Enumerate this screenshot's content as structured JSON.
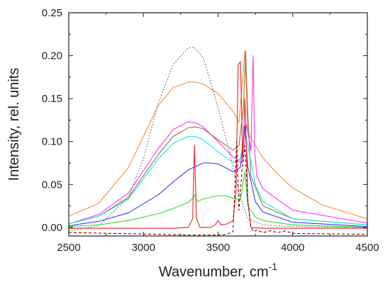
{
  "chart_data": {
    "type": "line",
    "xlabel": "Wavenumber, cm",
    "xlabel_superscript": "-1",
    "ylabel": "Intensity, rel. units",
    "xlim": [
      2500,
      4500
    ],
    "ylim": [
      -0.01,
      0.25
    ],
    "x_ticks": [
      "2500",
      "3000",
      "3500",
      "4000",
      "4500"
    ],
    "y_ticks": [
      "0.00",
      "0.05",
      "0.10",
      "0.15",
      "0.20",
      "0.25"
    ],
    "grid": false,
    "legend": "none",
    "series": [
      {
        "color": "#ff8c3a",
        "dash": "solid",
        "x": [
          2500,
          2700,
          2900,
          3000,
          3100,
          3200,
          3300,
          3350,
          3400,
          3500,
          3600,
          3640,
          3680,
          3700,
          3800,
          3900,
          4000,
          4200,
          4500
        ],
        "y": [
          0.013,
          0.028,
          0.07,
          0.106,
          0.142,
          0.163,
          0.169,
          0.169,
          0.167,
          0.156,
          0.135,
          0.122,
          0.206,
          0.11,
          0.081,
          0.062,
          0.046,
          0.026,
          0.01
        ]
      },
      {
        "color": "#555555",
        "dash": "dot",
        "x": [
          2500,
          2700,
          2900,
          3000,
          3100,
          3200,
          3300,
          3340,
          3400,
          3500,
          3600,
          3650,
          3700,
          3800,
          3900,
          4000,
          4500
        ],
        "y": [
          -0.004,
          0.002,
          0.035,
          0.08,
          0.145,
          0.19,
          0.209,
          0.21,
          0.198,
          0.14,
          0.07,
          0.035,
          0.01,
          0.003,
          0.002,
          0.001,
          0.0
        ]
      },
      {
        "color": "#ff33ff",
        "dash": "solid",
        "x": [
          2500,
          2700,
          2900,
          3100,
          3200,
          3300,
          3350,
          3400,
          3500,
          3600,
          3660,
          3690,
          3720,
          3735,
          3745,
          3760,
          3800,
          4000,
          4500
        ],
        "y": [
          0.004,
          0.015,
          0.04,
          0.092,
          0.114,
          0.123,
          0.122,
          0.117,
          0.1,
          0.082,
          0.075,
          0.12,
          0.09,
          0.2,
          0.09,
          0.06,
          0.045,
          0.02,
          0.005
        ]
      },
      {
        "color": "#8c7a3a",
        "dash": "solid",
        "x": [
          2500,
          2700,
          2900,
          3100,
          3200,
          3300,
          3350,
          3400,
          3500,
          3600,
          3640,
          3670,
          3685,
          3700,
          3720,
          3800,
          4000,
          4500
        ],
        "y": [
          0.004,
          0.013,
          0.035,
          0.085,
          0.106,
          0.116,
          0.117,
          0.115,
          0.102,
          0.09,
          0.095,
          0.14,
          0.205,
          0.13,
          0.06,
          0.025,
          0.01,
          0.003
        ]
      },
      {
        "color": "#22e5e5",
        "dash": "solid",
        "x": [
          2500,
          2700,
          2900,
          3100,
          3200,
          3300,
          3350,
          3400,
          3500,
          3600,
          3650,
          3680,
          3700,
          3750,
          3800,
          4000,
          4500
        ],
        "y": [
          0.004,
          0.013,
          0.033,
          0.08,
          0.098,
          0.106,
          0.106,
          0.102,
          0.088,
          0.076,
          0.08,
          0.115,
          0.095,
          0.05,
          0.03,
          0.01,
          0.003
        ]
      },
      {
        "color": "#3a3aff",
        "dash": "solid",
        "x": [
          2500,
          2700,
          2900,
          3100,
          3200,
          3300,
          3400,
          3450,
          3500,
          3600,
          3650,
          3680,
          3700,
          3750,
          3800,
          4000,
          4500
        ],
        "y": [
          0.002,
          0.007,
          0.017,
          0.038,
          0.053,
          0.067,
          0.075,
          0.075,
          0.074,
          0.065,
          0.07,
          0.118,
          0.07,
          0.03,
          0.018,
          0.006,
          0.001
        ]
      },
      {
        "color": "#33dd33",
        "dash": "solid",
        "x": [
          2500,
          2700,
          2900,
          3100,
          3200,
          3300,
          3330,
          3345,
          3360,
          3400,
          3500,
          3550,
          3600,
          3650,
          3680,
          3700,
          3750,
          3800,
          4000,
          4500
        ],
        "y": [
          0.001,
          0.003,
          0.008,
          0.016,
          0.022,
          0.029,
          0.034,
          0.038,
          0.03,
          0.033,
          0.037,
          0.037,
          0.034,
          0.033,
          0.065,
          0.025,
          0.012,
          0.008,
          0.003,
          0.0
        ]
      },
      {
        "color": "#ee2222",
        "dash": "solid",
        "x": [
          2500,
          3000,
          3200,
          3300,
          3330,
          3342,
          3355,
          3380,
          3450,
          3480,
          3500,
          3520,
          3560,
          3600,
          3620,
          3635,
          3650,
          3665,
          3680,
          3700,
          3720,
          3800,
          4000,
          4500
        ],
        "y": [
          -0.001,
          -0.001,
          -0.001,
          0.0,
          0.01,
          0.096,
          0.01,
          0.0,
          0.0,
          0.003,
          0.008,
          0.003,
          0.004,
          0.008,
          0.04,
          0.19,
          0.193,
          0.08,
          0.15,
          0.03,
          0.0,
          -0.001,
          -0.001,
          -0.001
        ]
      },
      {
        "color": "#8b0000",
        "dash": "dash",
        "x": [
          2500,
          2800,
          3100,
          3300,
          3500,
          3560,
          3600,
          3625,
          3640,
          3660,
          3680,
          3700,
          3720,
          3740,
          3760,
          3800,
          3850,
          3900,
          3950,
          4000,
          4500
        ],
        "y": [
          -0.006,
          -0.007,
          -0.008,
          -0.009,
          -0.009,
          -0.008,
          -0.005,
          0.1,
          0.02,
          0.065,
          0.095,
          0.03,
          0.0,
          -0.005,
          -0.003,
          -0.006,
          -0.004,
          -0.006,
          -0.004,
          -0.007,
          -0.008
        ]
      }
    ]
  }
}
